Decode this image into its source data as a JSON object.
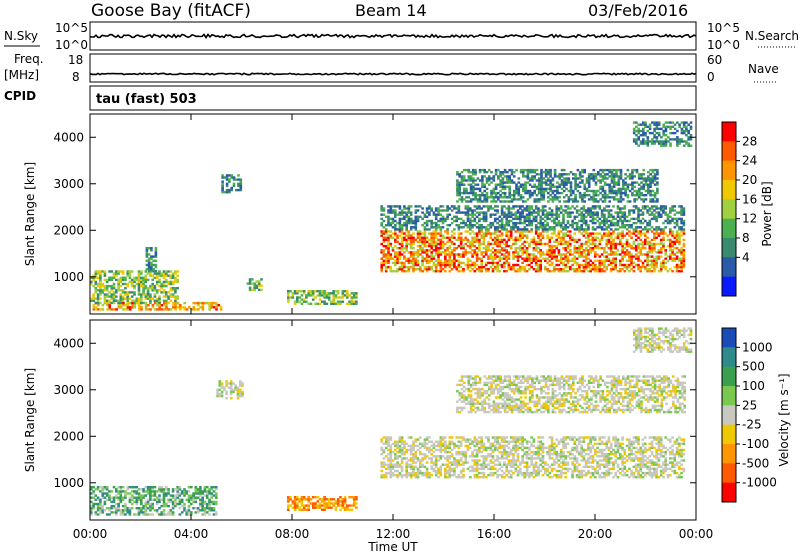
{
  "header": {
    "station": "Goose Bay (fitACF)",
    "beam": "Beam 14",
    "date": "03/Feb/2016"
  },
  "aux_panels": {
    "nsky_label": "N.Sky",
    "nsky_ticks": [
      "10^5",
      "10^0"
    ],
    "nsearch_label": "N.Search",
    "nsearch_ticks": [
      "10^5",
      "10^0"
    ],
    "freq_label_1": "Freq.",
    "freq_label_2": "[MHz]",
    "freq_ticks": [
      "18",
      "8"
    ],
    "nave_label": "Nave",
    "nave_ticks": [
      "60",
      "0"
    ],
    "cpid_label": "CPID",
    "cpid_text": "tau (fast) 503"
  },
  "chart_data": [
    {
      "type": "heatmap",
      "panel": "power",
      "ylabel": "Slant Range [km]",
      "xlabel": "Time UT",
      "ylim": [
        200,
        4500
      ],
      "xlim": [
        0,
        24
      ],
      "y_ticks": [
        "1000",
        "2000",
        "3000",
        "4000"
      ],
      "x_ticks": [
        "00:00",
        "04:00",
        "08:00",
        "12:00",
        "16:00",
        "20:00",
        "00:00"
      ],
      "colorbar": {
        "label": "Power [dB]",
        "ticks": [
          "28",
          "24",
          "20",
          "16",
          "12",
          "8",
          "4"
        ],
        "colors": [
          "#ff0000",
          "#ff5a00",
          "#ff9600",
          "#f0c800",
          "#a0d040",
          "#4cb050",
          "#3a8a70",
          "#2a5aa8",
          "#0a1aff"
        ]
      },
      "echo_regions": [
        {
          "t0": 0.1,
          "t1": 5.2,
          "r0": 280,
          "r1": 420,
          "level": "high"
        },
        {
          "t0": 0.0,
          "t1": 3.5,
          "r0": 420,
          "r1": 1100,
          "level": "mid"
        },
        {
          "t0": 2.2,
          "t1": 2.6,
          "r0": 1100,
          "r1": 1600,
          "level": "low"
        },
        {
          "t0": 5.2,
          "t1": 6.0,
          "r0": 2800,
          "r1": 3200,
          "level": "low"
        },
        {
          "t0": 6.2,
          "t1": 6.8,
          "r0": 700,
          "r1": 950,
          "level": "mid"
        },
        {
          "t0": 7.8,
          "t1": 10.5,
          "r0": 400,
          "r1": 700,
          "level": "mid"
        },
        {
          "t0": 11.5,
          "t1": 23.5,
          "r0": 1100,
          "r1": 2000,
          "level": "high"
        },
        {
          "t0": 11.5,
          "t1": 23.5,
          "r0": 2000,
          "r1": 2500,
          "level": "low"
        },
        {
          "t0": 14.5,
          "t1": 22.5,
          "r0": 2600,
          "r1": 3300,
          "level": "low"
        },
        {
          "t0": 21.5,
          "t1": 23.8,
          "r0": 3800,
          "r1": 4300,
          "level": "low"
        }
      ]
    },
    {
      "type": "heatmap",
      "panel": "velocity",
      "ylabel": "Slant Range [km]",
      "xlabel": "Time UT",
      "ylim": [
        200,
        4500
      ],
      "xlim": [
        0,
        24
      ],
      "y_ticks": [
        "1000",
        "2000",
        "3000",
        "4000"
      ],
      "x_ticks": [
        "00:00",
        "04:00",
        "08:00",
        "12:00",
        "16:00",
        "20:00",
        "00:00"
      ],
      "colorbar": {
        "label": "Velocity [m s⁻¹]",
        "ticks": [
          "1000",
          "500",
          "100",
          "25",
          "-25",
          "-100",
          "-500",
          "-1000"
        ],
        "colors": [
          "#1a4cb8",
          "#2f8a8a",
          "#3aa050",
          "#7ac850",
          "#c8c8c0",
          "#f0c800",
          "#ff9600",
          "#ff5a00",
          "#ff0000"
        ]
      },
      "echo_regions": [
        {
          "t0": 0.0,
          "t1": 5.0,
          "r0": 300,
          "r1": 900,
          "level": "pos"
        },
        {
          "t0": 7.8,
          "t1": 10.5,
          "r0": 400,
          "r1": 700,
          "level": "neg"
        },
        {
          "t0": 11.5,
          "t1": 23.5,
          "r0": 1100,
          "r1": 2000,
          "level": "zero"
        },
        {
          "t0": 14.5,
          "t1": 23.5,
          "r0": 2500,
          "r1": 3300,
          "level": "zero"
        },
        {
          "t0": 21.5,
          "t1": 23.8,
          "r0": 3800,
          "r1": 4300,
          "level": "zero"
        },
        {
          "t0": 5.0,
          "t1": 6.0,
          "r0": 2800,
          "r1": 3200,
          "level": "zero"
        }
      ]
    }
  ]
}
